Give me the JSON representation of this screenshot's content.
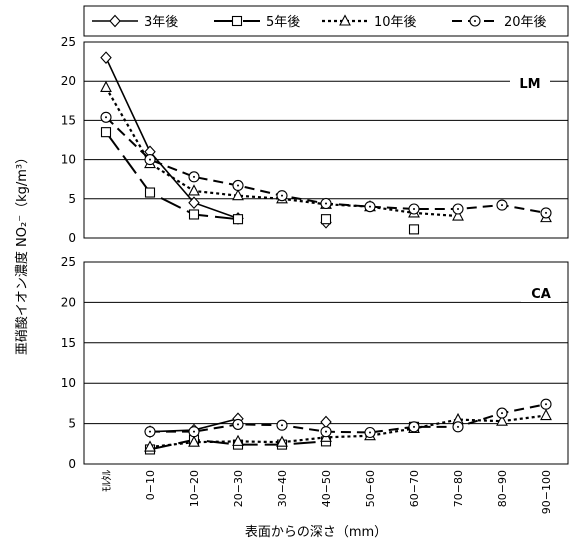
{
  "chart_data": [
    {
      "type": "line",
      "label": "LM",
      "ylim": [
        0,
        25
      ],
      "yticks": [
        0,
        5,
        10,
        15,
        20,
        25
      ],
      "series": [
        {
          "name": "3年後",
          "values": [
            23.0,
            11.0,
            4.5,
            2.5,
            null,
            2.0,
            null,
            null,
            null,
            null,
            null
          ]
        },
        {
          "name": "5年後",
          "values": [
            13.5,
            5.8,
            3.0,
            2.4,
            null,
            2.4,
            null,
            1.1,
            null,
            null,
            null
          ]
        },
        {
          "name": "10年後",
          "values": [
            19.2,
            9.5,
            6.0,
            5.4,
            5.0,
            4.3,
            4.0,
            3.2,
            2.8,
            null,
            2.6
          ]
        },
        {
          "name": "20年後",
          "values": [
            15.4,
            10.0,
            7.8,
            6.7,
            5.4,
            4.4,
            4.0,
            3.7,
            3.7,
            4.2,
            3.2
          ]
        }
      ]
    },
    {
      "type": "line",
      "label": "CA",
      "ylim": [
        0,
        25
      ],
      "yticks": [
        0,
        5,
        10,
        15,
        20,
        25
      ],
      "series": [
        {
          "name": "3年後",
          "values": [
            null,
            4.0,
            4.2,
            5.6,
            null,
            5.2,
            null,
            null,
            null,
            null,
            null
          ]
        },
        {
          "name": "5年後",
          "values": [
            null,
            1.8,
            3.0,
            2.4,
            2.4,
            2.8,
            null,
            4.6,
            null,
            null,
            null
          ]
        },
        {
          "name": "10年後",
          "values": [
            null,
            2.1,
            2.7,
            2.8,
            2.7,
            3.3,
            3.5,
            4.4,
            5.5,
            5.3,
            6.0
          ]
        },
        {
          "name": "20年後",
          "values": [
            null,
            4.0,
            4.0,
            4.9,
            4.8,
            4.0,
            3.9,
            4.6,
            4.6,
            6.3,
            7.4
          ]
        }
      ]
    }
  ],
  "categories": [
    "ﾓﾙﾀﾙ",
    "0−10",
    "10−20",
    "20−30",
    "30−40",
    "40−50",
    "50−60",
    "60−70",
    "70−80",
    "80−90",
    "90−100"
  ],
  "xlabel": "表面からの深さ（mm）",
  "ylabel": "亜硝酸イオン濃度 NO₂⁻（kg/m³）",
  "legend": {
    "placement": "top",
    "items": [
      {
        "label": "3年後",
        "marker": "diamond-icon",
        "dash": "solid"
      },
      {
        "label": "5年後",
        "marker": "square-icon",
        "dash": "long-dash"
      },
      {
        "label": "10年後",
        "marker": "triangle-icon",
        "dash": "dotted"
      },
      {
        "label": "20年後",
        "marker": "circle-icon",
        "dash": "dash"
      }
    ]
  }
}
